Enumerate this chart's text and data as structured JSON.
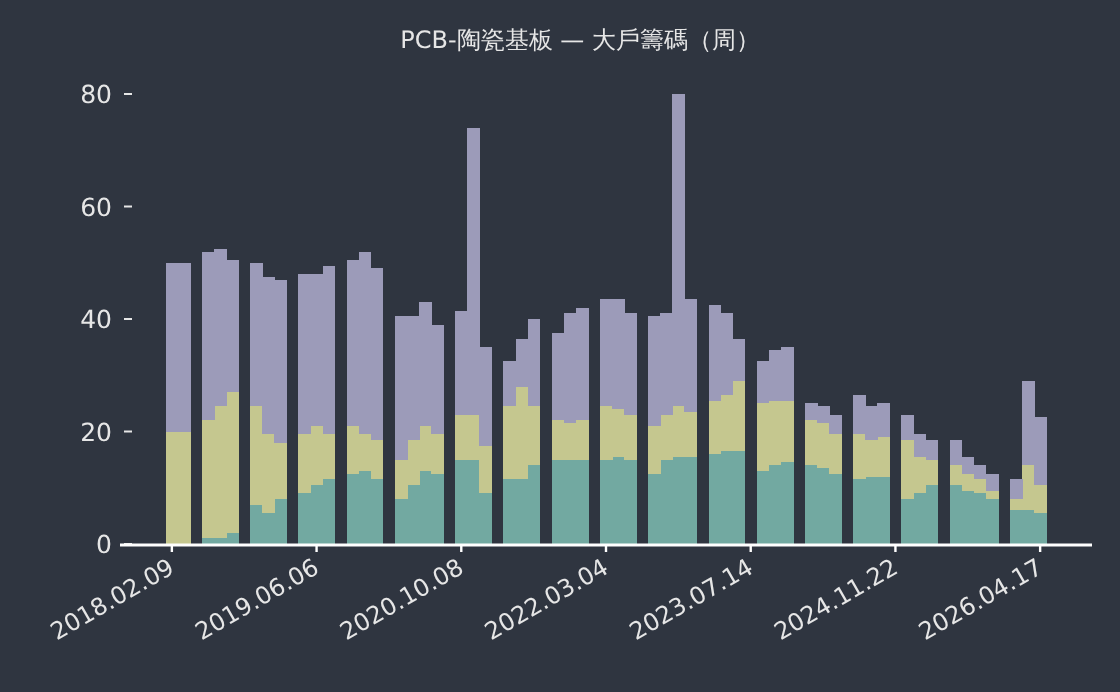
{
  "chart_data": {
    "type": "bar",
    "stacked": true,
    "title": "PCB-陶瓷基板 — 大戶籌碼（周）",
    "categories": [
      "2018.02.09",
      null,
      null,
      null,
      null,
      null,
      null,
      null,
      null,
      null,
      null,
      null,
      "2019.06.06",
      null,
      null,
      null,
      null,
      null,
      null,
      null,
      null,
      null,
      null,
      null,
      "2020.10.08",
      null,
      null,
      null,
      null,
      null,
      null,
      null,
      null,
      null,
      null,
      null,
      "2022.03.04",
      null,
      null,
      null,
      null,
      null,
      null,
      null,
      null,
      null,
      null,
      null,
      "2023.07.14",
      null,
      null,
      null,
      null,
      null,
      null,
      null,
      null,
      null,
      null,
      null,
      "2024.11.22",
      null,
      null,
      null,
      null,
      null,
      null,
      null,
      null,
      null,
      null,
      null,
      "2026.04.17"
    ],
    "series": [
      {
        "color": "#72a9a1",
        "values": [
          0,
          0,
          null,
          1,
          1,
          2,
          null,
          7,
          5.5,
          8,
          null,
          9,
          10.5,
          11.5,
          null,
          12.5,
          13,
          11.5,
          null,
          8,
          10.5,
          13,
          12.5,
          null,
          15,
          15,
          9,
          null,
          11.5,
          11.5,
          14,
          null,
          15,
          15,
          15,
          null,
          15,
          15.5,
          15,
          null,
          12.5,
          15,
          15.5,
          15.5,
          null,
          16,
          16.5,
          16.5,
          null,
          13,
          14,
          14.5,
          null,
          14,
          13.5,
          12.5,
          null,
          11.5,
          12,
          12,
          null,
          8,
          9,
          10.5,
          null,
          10.5,
          9.5,
          9,
          8,
          null,
          6,
          6,
          5.5
        ]
      },
      {
        "color": "#c5c78f",
        "values": [
          20,
          20,
          null,
          21,
          23.5,
          25,
          null,
          17.5,
          14,
          10,
          null,
          10.5,
          10.5,
          8,
          null,
          8.5,
          6.5,
          7,
          null,
          7,
          8,
          8,
          7,
          null,
          8,
          8,
          8.5,
          null,
          13,
          16.5,
          10.5,
          null,
          7,
          6.5,
          7,
          null,
          9.5,
          8.5,
          8,
          null,
          8.5,
          8,
          9,
          8,
          null,
          9.5,
          10,
          12.5,
          null,
          12,
          11.5,
          11,
          null,
          8,
          8,
          7,
          null,
          8,
          6.5,
          7,
          null,
          10.5,
          6.5,
          4.5,
          null,
          3.5,
          3,
          2.5,
          1.5,
          null,
          2,
          8,
          5
        ]
      },
      {
        "color": "#9c9bb9",
        "values": [
          30,
          30,
          null,
          30,
          28,
          23.5,
          null,
          25.5,
          28,
          29,
          null,
          28.5,
          27,
          30,
          null,
          29.5,
          32.5,
          30.5,
          null,
          25.5,
          22,
          22,
          19.5,
          null,
          18.5,
          51,
          17.5,
          null,
          8,
          8.5,
          15.5,
          null,
          15.5,
          19.5,
          20,
          null,
          19,
          19.5,
          18,
          null,
          19.5,
          18,
          55.5,
          20,
          null,
          17,
          14.5,
          7.5,
          null,
          7.5,
          9,
          9.5,
          null,
          3,
          3,
          3.5,
          null,
          7,
          6,
          6,
          null,
          4.5,
          4,
          3.5,
          null,
          4.5,
          3,
          2.5,
          3,
          null,
          3.5,
          15,
          12
        ]
      }
    ],
    "ylim": [
      0,
      80
    ],
    "yticks": [
      0,
      20,
      40,
      60,
      80
    ],
    "grid": false
  }
}
